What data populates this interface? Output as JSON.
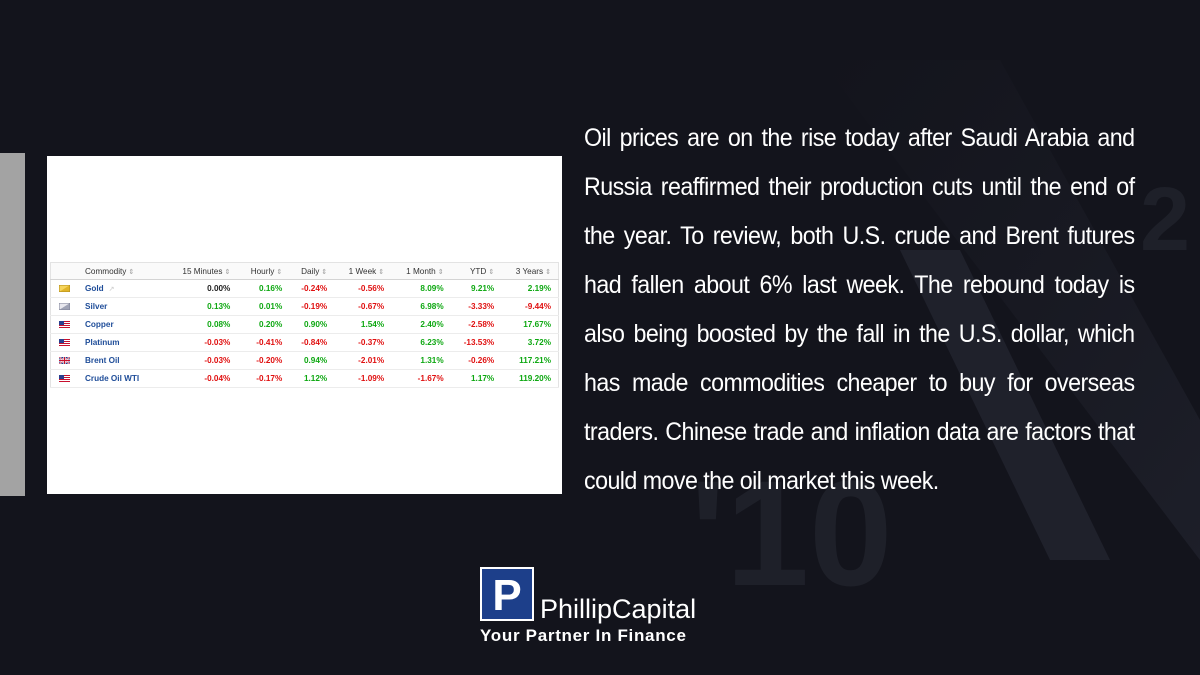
{
  "article": {
    "text": "Oil prices are on the rise today after Saudi Arabia and Russia reaffirmed their production cuts until the end of the year. To review, both U.S. crude and Brent futures had fallen about 6% last week. The rebound today is also being boosted by the fall in the U.S. dollar, which has made commodities cheaper to buy for overseas traders. Chinese trade and inflation data are factors that could move the oil market this week."
  },
  "table": {
    "headers": [
      "Commodity",
      "15 Minutes",
      "Hourly",
      "Daily",
      "1 Week",
      "1 Month",
      "YTD",
      "3 Years"
    ],
    "sort_icon": "sort-updown-icon",
    "rows": [
      {
        "flag": "gold-flag-icon",
        "name": "Gold",
        "values": [
          "0.00%",
          "0.16%",
          "-0.24%",
          "-0.56%",
          "8.09%",
          "9.21%",
          "2.19%"
        ]
      },
      {
        "flag": "silver-flag-icon",
        "name": "Silver",
        "values": [
          "0.13%",
          "0.01%",
          "-0.19%",
          "-0.67%",
          "6.98%",
          "-3.33%",
          "-9.44%"
        ]
      },
      {
        "flag": "us-flag-icon",
        "name": "Copper",
        "values": [
          "0.08%",
          "0.20%",
          "0.90%",
          "1.54%",
          "2.40%",
          "-2.58%",
          "17.67%"
        ]
      },
      {
        "flag": "us-flag-icon",
        "name": "Platinum",
        "values": [
          "-0.03%",
          "-0.41%",
          "-0.84%",
          "-0.37%",
          "6.23%",
          "-13.53%",
          "3.72%"
        ]
      },
      {
        "flag": "uk-flag-icon",
        "name": "Brent Oil",
        "values": [
          "-0.03%",
          "-0.20%",
          "0.94%",
          "-2.01%",
          "1.31%",
          "-0.26%",
          "117.21%"
        ]
      },
      {
        "flag": "us-flag-icon",
        "name": "Crude Oil WTI",
        "values": [
          "-0.04%",
          "-0.17%",
          "1.12%",
          "-1.09%",
          "-1.67%",
          "1.17%",
          "119.20%"
        ]
      }
    ]
  },
  "logo": {
    "mark_letter": "P",
    "brand": "PhillipCapital",
    "tagline": "Your Partner In Finance"
  },
  "colors": {
    "background": "#13141c",
    "positive": "#0ea812",
    "negative": "#e01010",
    "link": "#1f4d99",
    "logo_blue": "#1d3f8a"
  }
}
